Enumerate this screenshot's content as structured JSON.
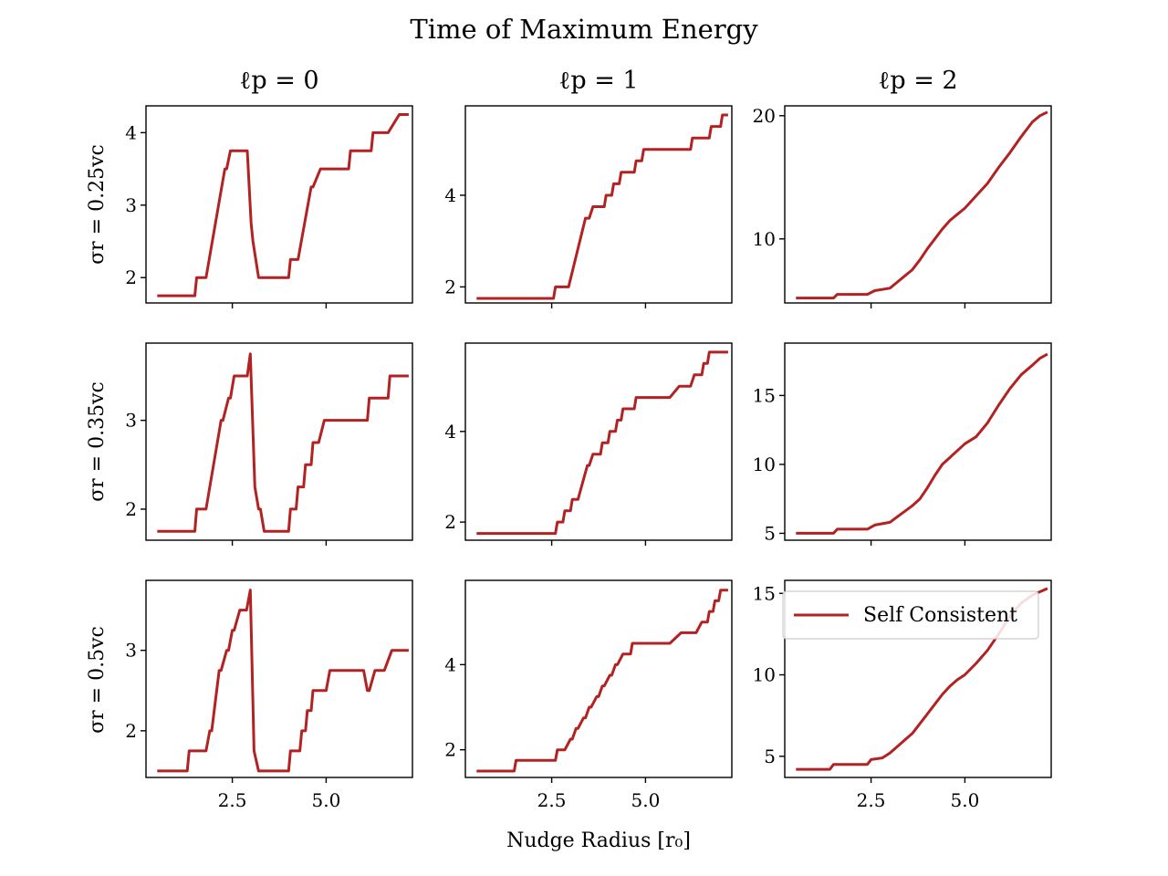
{
  "figure": {
    "title": "Time of Maximum Energy",
    "xlabel": "Nudge Radius [r₀]",
    "column_titles": [
      "ℓp = 0",
      "ℓp = 1",
      "ℓp = 2"
    ],
    "row_labels": [
      "σr = 0.25vc",
      "σr = 0.35vc",
      "σr = 0.5vc"
    ],
    "x_tick_labels": [
      "2.5",
      "5.0"
    ],
    "legend": {
      "label": "Self Consistent",
      "location": "upper-right",
      "panel": "row3-col3"
    },
    "line_color": "#b22222"
  },
  "chart_data": [
    {
      "type": "line",
      "panel": "row1-col1",
      "xlim": [
        0.2,
        7.3
      ],
      "ylim": [
        1.65,
        4.37
      ],
      "yticks": [
        2,
        3,
        4
      ],
      "x": [
        0.5,
        1.0,
        1.3,
        1.5,
        1.55,
        1.75,
        1.8,
        2.3,
        2.35,
        2.45,
        2.5,
        2.6,
        2.7,
        2.8,
        2.9,
        3.0,
        3.05,
        3.2,
        3.3,
        4.0,
        4.05,
        4.2,
        4.25,
        4.6,
        4.65,
        4.85,
        4.9,
        5.6,
        5.65,
        6.2,
        6.25,
        6.6,
        6.65,
        6.95,
        7.0,
        7.2
      ],
      "y": [
        1.75,
        1.75,
        1.75,
        1.75,
        2.0,
        2.0,
        2.0,
        3.5,
        3.5,
        3.75,
        3.75,
        3.75,
        3.75,
        3.75,
        3.75,
        2.75,
        2.5,
        2.0,
        2.0,
        2.0,
        2.25,
        2.25,
        2.25,
        3.25,
        3.25,
        3.5,
        3.5,
        3.5,
        3.75,
        3.75,
        4.0,
        4.0,
        4.0,
        4.25,
        4.25,
        4.25
      ]
    },
    {
      "type": "line",
      "panel": "row1-col2",
      "xlim": [
        0.2,
        7.3
      ],
      "ylim": [
        1.65,
        5.95
      ],
      "yticks": [
        2,
        4
      ],
      "x": [
        0.5,
        1.0,
        1.5,
        2.0,
        2.55,
        2.6,
        2.9,
        2.95,
        3.4,
        3.5,
        3.6,
        3.7,
        3.75,
        3.9,
        3.95,
        4.1,
        4.15,
        4.3,
        4.35,
        4.5,
        4.55,
        4.7,
        4.75,
        4.9,
        4.95,
        5.1,
        5.2,
        5.6,
        5.7,
        6.2,
        6.25,
        6.45,
        6.5,
        6.7,
        6.75,
        6.85,
        6.9,
        7.0,
        7.05,
        7.2
      ],
      "y": [
        1.75,
        1.75,
        1.75,
        1.75,
        1.75,
        2.0,
        2.0,
        2.0,
        3.5,
        3.5,
        3.75,
        3.75,
        3.75,
        3.75,
        4.0,
        4.0,
        4.25,
        4.25,
        4.5,
        4.5,
        4.5,
        4.5,
        4.75,
        4.75,
        5.0,
        5.0,
        5.0,
        5.0,
        5.0,
        5.0,
        5.25,
        5.25,
        5.25,
        5.25,
        5.5,
        5.5,
        5.5,
        5.5,
        5.75,
        5.75
      ]
    },
    {
      "type": "line",
      "panel": "row1-col3",
      "xlim": [
        0.2,
        7.3
      ],
      "ylim": [
        4.8,
        20.8
      ],
      "yticks": [
        10,
        20
      ],
      "x": [
        0.5,
        1.0,
        1.5,
        1.6,
        2.0,
        2.4,
        2.6,
        3.0,
        3.2,
        3.4,
        3.6,
        3.8,
        4.0,
        4.2,
        4.4,
        4.6,
        4.8,
        5.0,
        5.3,
        5.6,
        5.9,
        6.2,
        6.5,
        6.8,
        7.0,
        7.2
      ],
      "y": [
        5.2,
        5.2,
        5.2,
        5.5,
        5.5,
        5.5,
        5.8,
        6.0,
        6.5,
        7.0,
        7.5,
        8.3,
        9.2,
        10.0,
        10.8,
        11.5,
        12.0,
        12.5,
        13.5,
        14.5,
        15.8,
        17.0,
        18.3,
        19.5,
        20.0,
        20.3
      ]
    },
    {
      "type": "line",
      "panel": "row2-col1",
      "xlim": [
        0.2,
        7.3
      ],
      "ylim": [
        1.65,
        3.87
      ],
      "yticks": [
        2,
        3
      ],
      "x": [
        0.5,
        1.0,
        1.5,
        1.55,
        1.75,
        1.8,
        2.2,
        2.25,
        2.4,
        2.45,
        2.55,
        2.6,
        2.85,
        2.9,
        2.98,
        3.1,
        3.2,
        3.25,
        3.35,
        3.4,
        4.0,
        4.05,
        4.2,
        4.25,
        4.4,
        4.45,
        4.6,
        4.65,
        4.75,
        4.8,
        4.95,
        5.0,
        5.95,
        6.0,
        6.1,
        6.15,
        6.5,
        6.55,
        6.6,
        6.65,
        6.7,
        6.75,
        7.2
      ],
      "y": [
        1.75,
        1.75,
        1.75,
        2.0,
        2.0,
        2.0,
        3.0,
        3.0,
        3.25,
        3.25,
        3.5,
        3.5,
        3.5,
        3.5,
        3.75,
        2.25,
        2.0,
        2.0,
        1.75,
        1.75,
        1.75,
        2.0,
        2.0,
        2.25,
        2.25,
        2.5,
        2.5,
        2.75,
        2.75,
        2.75,
        3.0,
        3.0,
        3.0,
        3.0,
        3.0,
        3.25,
        3.25,
        3.25,
        3.25,
        3.25,
        3.5,
        3.5,
        3.5
      ]
    },
    {
      "type": "line",
      "panel": "row2-col2",
      "xlim": [
        0.2,
        7.3
      ],
      "ylim": [
        1.6,
        5.95
      ],
      "yticks": [
        2,
        4
      ],
      "x": [
        0.5,
        1.0,
        1.5,
        2.0,
        2.6,
        2.65,
        2.8,
        2.85,
        3.0,
        3.05,
        3.15,
        3.2,
        3.45,
        3.5,
        3.6,
        3.65,
        3.8,
        3.85,
        4.0,
        4.05,
        4.2,
        4.25,
        4.35,
        4.4,
        4.5,
        4.55,
        4.7,
        4.75,
        5.0,
        5.2,
        5.4,
        5.6,
        5.65,
        5.9,
        5.95,
        6.15,
        6.2,
        6.3,
        6.35,
        6.5,
        6.55,
        6.65,
        6.7,
        6.85,
        6.9,
        7.2
      ],
      "y": [
        1.75,
        1.75,
        1.75,
        1.75,
        1.75,
        2.0,
        2.0,
        2.25,
        2.25,
        2.5,
        2.5,
        2.5,
        3.25,
        3.25,
        3.5,
        3.5,
        3.5,
        3.75,
        3.75,
        4.0,
        4.0,
        4.25,
        4.25,
        4.5,
        4.5,
        4.5,
        4.5,
        4.75,
        4.75,
        4.75,
        4.75,
        4.75,
        4.75,
        5.0,
        5.0,
        5.0,
        5.0,
        5.25,
        5.25,
        5.25,
        5.5,
        5.5,
        5.75,
        5.75,
        5.75,
        5.75
      ]
    },
    {
      "type": "line",
      "panel": "row2-col3",
      "xlim": [
        0.2,
        7.3
      ],
      "ylim": [
        4.5,
        18.8
      ],
      "yticks": [
        5,
        10,
        15
      ],
      "x": [
        0.5,
        1.0,
        1.5,
        1.6,
        2.0,
        2.4,
        2.6,
        3.0,
        3.2,
        3.4,
        3.6,
        3.8,
        4.0,
        4.2,
        4.4,
        4.6,
        4.8,
        5.0,
        5.3,
        5.6,
        5.9,
        6.2,
        6.5,
        6.8,
        7.0,
        7.2
      ],
      "y": [
        5.0,
        5.0,
        5.0,
        5.3,
        5.3,
        5.3,
        5.6,
        5.8,
        6.2,
        6.6,
        7.0,
        7.5,
        8.3,
        9.2,
        10.0,
        10.5,
        11.0,
        11.5,
        12.0,
        13.0,
        14.3,
        15.5,
        16.5,
        17.2,
        17.7,
        18.0
      ]
    },
    {
      "type": "line",
      "panel": "row3-col1",
      "xlim": [
        0.2,
        7.3
      ],
      "ylim": [
        1.42,
        3.87
      ],
      "yticks": [
        2,
        3
      ],
      "x": [
        0.5,
        0.8,
        1.3,
        1.35,
        1.75,
        1.8,
        1.9,
        1.95,
        2.15,
        2.2,
        2.35,
        2.4,
        2.5,
        2.55,
        2.7,
        2.75,
        2.85,
        2.88,
        2.98,
        3.08,
        3.2,
        3.3,
        3.6,
        4.0,
        4.05,
        4.2,
        4.3,
        4.35,
        4.45,
        4.5,
        4.6,
        4.65,
        4.8,
        4.85,
        5.0,
        5.1,
        5.15,
        5.3,
        5.5,
        5.75,
        6.0,
        6.1,
        6.15,
        6.3,
        6.35,
        6.5,
        6.55,
        6.75,
        6.8,
        7.2
      ],
      "y": [
        1.5,
        1.5,
        1.5,
        1.75,
        1.75,
        1.75,
        2.0,
        2.0,
        2.75,
        2.75,
        3.0,
        3.0,
        3.25,
        3.25,
        3.5,
        3.5,
        3.5,
        3.5,
        3.75,
        1.75,
        1.5,
        1.5,
        1.5,
        1.5,
        1.75,
        1.75,
        1.75,
        2.0,
        2.0,
        2.25,
        2.25,
        2.5,
        2.5,
        2.5,
        2.5,
        2.75,
        2.75,
        2.75,
        2.75,
        2.75,
        2.75,
        2.5,
        2.5,
        2.75,
        2.75,
        2.75,
        2.75,
        3.0,
        3.0,
        3.0
      ]
    },
    {
      "type": "line",
      "panel": "row3-col2",
      "xlim": [
        0.2,
        7.3
      ],
      "ylim": [
        1.35,
        5.98
      ],
      "yticks": [
        2,
        4
      ],
      "x": [
        0.5,
        1.0,
        1.5,
        1.55,
        2.0,
        2.6,
        2.65,
        2.8,
        2.85,
        3.0,
        3.05,
        3.15,
        3.2,
        3.35,
        3.4,
        3.5,
        3.55,
        3.7,
        3.75,
        3.85,
        3.9,
        4.05,
        4.1,
        4.2,
        4.25,
        4.4,
        4.45,
        4.6,
        4.65,
        4.8,
        4.85,
        5.0,
        5.05,
        5.25,
        5.3,
        5.6,
        5.65,
        5.95,
        6.0,
        6.3,
        6.35,
        6.5,
        6.55,
        6.65,
        6.7,
        6.8,
        6.85,
        6.95,
        7.0,
        7.2
      ],
      "y": [
        1.5,
        1.5,
        1.5,
        1.75,
        1.75,
        1.75,
        2.0,
        2.0,
        2.0,
        2.25,
        2.25,
        2.5,
        2.5,
        2.75,
        2.75,
        3.0,
        3.0,
        3.25,
        3.25,
        3.5,
        3.5,
        3.75,
        3.75,
        4.0,
        4.0,
        4.25,
        4.25,
        4.25,
        4.5,
        4.5,
        4.5,
        4.5,
        4.5,
        4.5,
        4.5,
        4.5,
        4.5,
        4.75,
        4.75,
        4.75,
        4.75,
        5.0,
        5.0,
        5.0,
        5.25,
        5.25,
        5.5,
        5.5,
        5.75,
        5.75
      ]
    },
    {
      "type": "line",
      "panel": "row3-col3",
      "xlim": [
        0.2,
        7.3
      ],
      "ylim": [
        3.7,
        15.8
      ],
      "yticks": [
        5,
        10,
        15
      ],
      "x": [
        0.5,
        1.0,
        1.4,
        1.5,
        2.0,
        2.4,
        2.5,
        2.8,
        3.0,
        3.2,
        3.4,
        3.6,
        3.8,
        4.0,
        4.2,
        4.4,
        4.6,
        4.8,
        5.0,
        5.3,
        5.6,
        5.9,
        6.2,
        6.5,
        6.8,
        7.0,
        7.2
      ],
      "y": [
        4.2,
        4.2,
        4.2,
        4.5,
        4.5,
        4.5,
        4.8,
        4.9,
        5.2,
        5.6,
        6.0,
        6.4,
        7.0,
        7.6,
        8.2,
        8.8,
        9.3,
        9.7,
        10.0,
        10.7,
        11.5,
        12.5,
        13.6,
        14.4,
        14.9,
        15.1,
        15.3
      ]
    }
  ]
}
